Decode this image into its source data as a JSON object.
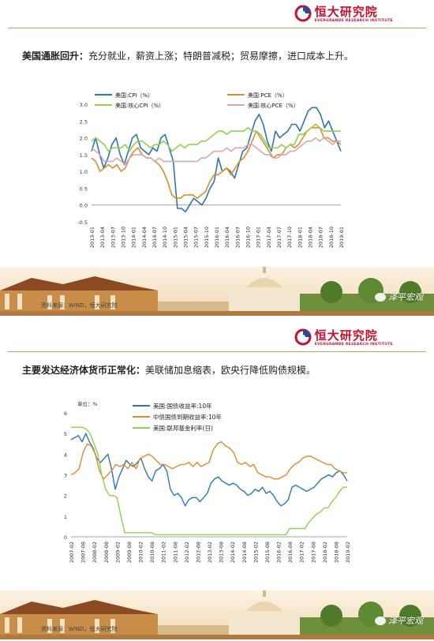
{
  "brand": {
    "name_cn": "恒大研究院",
    "name_en": "EVERGRANDE RESEARCH INSTITUTE",
    "color": "#c8102e"
  },
  "slide1": {
    "title_bold": "美国通胀回升：",
    "title_rest": "充分就业，薪资上涨；特朗普减税；贸易摩擦，进口成本上升。",
    "source": "资料来源：WIND，恒大研究院",
    "watermark": "泽平宏观"
  },
  "slide2": {
    "title_bold": "主要发达经济体货币正常化：",
    "title_rest": "美联储加息缩表，欧央行降低购债规模。",
    "source": "资料来源：WIND，恒大研究院",
    "watermark": "泽平宏观"
  },
  "chart_data": [
    {
      "type": "line",
      "ylim": [
        -0.5,
        3.0
      ],
      "yticks": [
        "3.0",
        "2.5",
        "2.0",
        "1.5",
        "1.0",
        "0.5",
        "0.0",
        "-0.5"
      ],
      "xticks": [
        "2013-01",
        "2013-04",
        "2013-07",
        "2013-10",
        "2014-01",
        "2014-04",
        "2014-07",
        "2014-10",
        "2015-01",
        "2015-04",
        "2015-07",
        "2015-10",
        "2016-01",
        "2016-04",
        "2016-07",
        "2016-10",
        "2017-01",
        "2017-04",
        "2017-07",
        "2017-10",
        "2018-01",
        "2018-04",
        "2018-07",
        "2018-10",
        "2019-01"
      ],
      "series": [
        {
          "name": "美国:CPI（%）",
          "color": "#2e75b6",
          "values": [
            1.6,
            2.0,
            1.5,
            1.1,
            1.4,
            1.8,
            2.0,
            1.5,
            1.2,
            1.6,
            2.0,
            2.1,
            1.7,
            1.6,
            1.5,
            1.7,
            1.6,
            2.0,
            2.1,
            1.7,
            1.3,
            -0.1,
            -0.1,
            -0.2,
            0.0,
            0.2,
            0.1,
            0.0,
            0.2,
            0.5,
            0.7,
            1.4,
            1.0,
            1.1,
            1.0,
            0.8,
            1.2,
            1.6,
            1.7,
            2.1,
            2.5,
            2.7,
            2.4,
            1.9,
            1.6,
            2.2,
            2.0,
            2.1,
            2.2,
            2.4,
            2.4,
            2.2,
            2.5,
            2.8,
            2.9,
            2.9,
            2.7,
            2.3,
            2.5,
            2.2,
            1.9,
            1.6
          ]
        },
        {
          "name": "美国:PCE（%）",
          "color": "#e08b2c",
          "values": [
            1.4,
            1.3,
            1.0,
            1.1,
            1.2,
            1.1,
            1.2,
            1.0,
            1.1,
            1.4,
            1.6,
            1.7,
            1.5,
            1.4,
            1.4,
            1.3,
            1.2,
            1.0,
            0.7,
            0.3,
            0.2,
            0.2,
            0.3,
            0.3,
            0.3,
            0.2,
            0.3,
            0.4,
            0.7,
            0.9,
            0.9,
            1.0,
            1.1,
            0.9,
            1.1,
            1.3,
            1.4,
            1.6,
            1.9,
            2.2,
            2.0,
            1.8,
            1.6,
            1.4,
            1.5,
            1.5,
            1.7,
            1.8,
            1.7,
            1.8,
            2.0,
            2.2,
            2.3,
            2.3,
            2.3,
            2.0,
            2.0,
            1.9,
            1.9,
            1.8
          ]
        },
        {
          "name": "美国:核心CPI（%）",
          "color": "#92d050",
          "values": [
            1.9,
            2.0,
            1.9,
            1.8,
            1.6,
            1.7,
            1.7,
            1.7,
            1.8,
            1.6,
            1.8,
            1.9,
            1.9,
            1.8,
            1.7,
            1.8,
            1.8,
            1.9,
            1.8,
            1.6,
            1.7,
            1.8,
            1.7,
            1.8,
            1.8,
            1.8,
            1.9,
            1.9,
            2.0,
            2.1,
            2.2,
            2.2,
            2.1,
            2.2,
            2.2,
            2.2,
            2.2,
            2.3,
            2.2,
            2.2,
            2.1,
            1.9,
            1.7,
            1.7,
            1.7,
            1.8,
            1.7,
            1.8,
            1.8,
            2.1,
            2.1,
            2.2,
            2.3,
            2.4,
            2.3,
            2.2,
            2.2,
            2.2,
            2.2,
            2.2
          ]
        },
        {
          "name": "美国:核心PCE（%）",
          "color": "#d9a5b3",
          "values": [
            1.7,
            1.6,
            1.5,
            1.3,
            1.3,
            1.3,
            1.4,
            1.3,
            1.2,
            1.4,
            1.5,
            1.5,
            1.5,
            1.4,
            1.4,
            1.3,
            1.4,
            1.3,
            1.3,
            1.3,
            1.3,
            1.3,
            1.3,
            1.3,
            1.3,
            1.3,
            1.4,
            1.4,
            1.5,
            1.6,
            1.6,
            1.6,
            1.7,
            1.6,
            1.7,
            1.7,
            1.7,
            1.8,
            1.8,
            1.7,
            1.6,
            1.5,
            1.5,
            1.4,
            1.4,
            1.5,
            1.5,
            1.6,
            1.6,
            1.7,
            1.8,
            1.9,
            1.9,
            2.0,
            1.9,
            2.0,
            1.9,
            1.8,
            1.9,
            1.9
          ]
        }
      ]
    },
    {
      "type": "line",
      "unit_label": "单位：%",
      "ylim": [
        0,
        6
      ],
      "yticks": [
        "6",
        "5",
        "4",
        "3",
        "2",
        "1",
        "0"
      ],
      "xticks": [
        "2007-02",
        "2007-08",
        "2008-02",
        "2008-08",
        "2009-02",
        "2009-08",
        "2010-02",
        "2010-08",
        "2011-02",
        "2011-08",
        "2012-02",
        "2012-08",
        "2013-02",
        "2013-08",
        "2014-02",
        "2014-08",
        "2015-02",
        "2015-08",
        "2016-02",
        "2016-08",
        "2017-02",
        "2017-08",
        "2018-02",
        "2018-08",
        "2019-02"
      ],
      "series": [
        {
          "name": "美国:国债收益率:10年",
          "color": "#2e75b6",
          "values": [
            4.7,
            4.8,
            4.9,
            4.6,
            5.0,
            4.6,
            4.3,
            3.8,
            3.6,
            3.8,
            4.0,
            3.3,
            2.3,
            2.9,
            3.3,
            3.7,
            3.5,
            3.4,
            3.6,
            3.8,
            3.3,
            2.9,
            2.7,
            3.2,
            3.3,
            3.5,
            3.2,
            2.3,
            2.0,
            2.1,
            1.9,
            1.5,
            1.8,
            1.9,
            1.9,
            1.7,
            1.9,
            2.1,
            2.6,
            2.8,
            2.9,
            2.7,
            2.6,
            2.5,
            2.6,
            2.5,
            2.3,
            2.2,
            2.0,
            2.1,
            2.3,
            2.2,
            2.4,
            2.1,
            2.2,
            2.0,
            1.7,
            1.5,
            1.6,
            1.8,
            2.4,
            2.5,
            2.4,
            2.3,
            2.2,
            2.3,
            2.4,
            2.6,
            2.8,
            2.9,
            3.0,
            2.9,
            3.1,
            3.2,
            3.0,
            2.7
          ]
        },
        {
          "name": "中债国债到期收益率:10年",
          "color": "#e08b2c",
          "values": [
            3.0,
            3.1,
            3.3,
            4.1,
            4.5,
            4.4,
            4.0,
            3.2,
            2.8,
            3.0,
            3.2,
            3.5,
            3.4,
            3.5,
            3.3,
            3.6,
            3.3,
            3.8,
            3.9,
            4.0,
            3.9,
            3.7,
            3.5,
            3.5,
            3.4,
            3.3,
            3.4,
            3.5,
            3.5,
            3.6,
            3.4,
            3.6,
            3.4,
            3.5,
            3.6,
            4.2,
            4.5,
            4.6,
            4.4,
            4.3,
            4.1,
            3.6,
            3.5,
            3.6,
            3.4,
            3.5,
            3.1,
            3.0,
            2.9,
            2.9,
            2.8,
            2.8,
            2.9,
            3.0,
            3.3,
            3.5,
            3.6,
            3.8,
            3.9,
            3.9,
            3.8,
            3.7,
            3.6,
            3.5,
            3.5,
            3.3,
            3.2,
            3.1,
            3.1
          ]
        },
        {
          "name": "美国:联邦基金利率(日)",
          "color": "#92d050",
          "values": [
            5.3,
            5.3,
            5.3,
            5.3,
            5.2,
            5.0,
            4.5,
            4.0,
            3.0,
            2.3,
            2.0,
            2.0,
            1.9,
            1.0,
            0.2,
            0.2,
            0.2,
            0.2,
            0.2,
            0.2,
            0.2,
            0.2,
            0.1,
            0.1,
            0.1,
            0.1,
            0.1,
            0.1,
            0.1,
            0.1,
            0.1,
            0.1,
            0.1,
            0.1,
            0.1,
            0.1,
            0.1,
            0.1,
            0.1,
            0.1,
            0.1,
            0.1,
            0.1,
            0.1,
            0.1,
            0.1,
            0.1,
            0.1,
            0.1,
            0.1,
            0.1,
            0.1,
            0.1,
            0.1,
            0.1,
            0.1,
            0.1,
            0.4,
            0.4,
            0.4,
            0.4,
            0.4,
            0.7,
            0.9,
            1.1,
            1.2,
            1.4,
            1.4,
            1.7,
            1.9,
            2.2,
            2.4,
            2.4
          ]
        }
      ]
    }
  ]
}
